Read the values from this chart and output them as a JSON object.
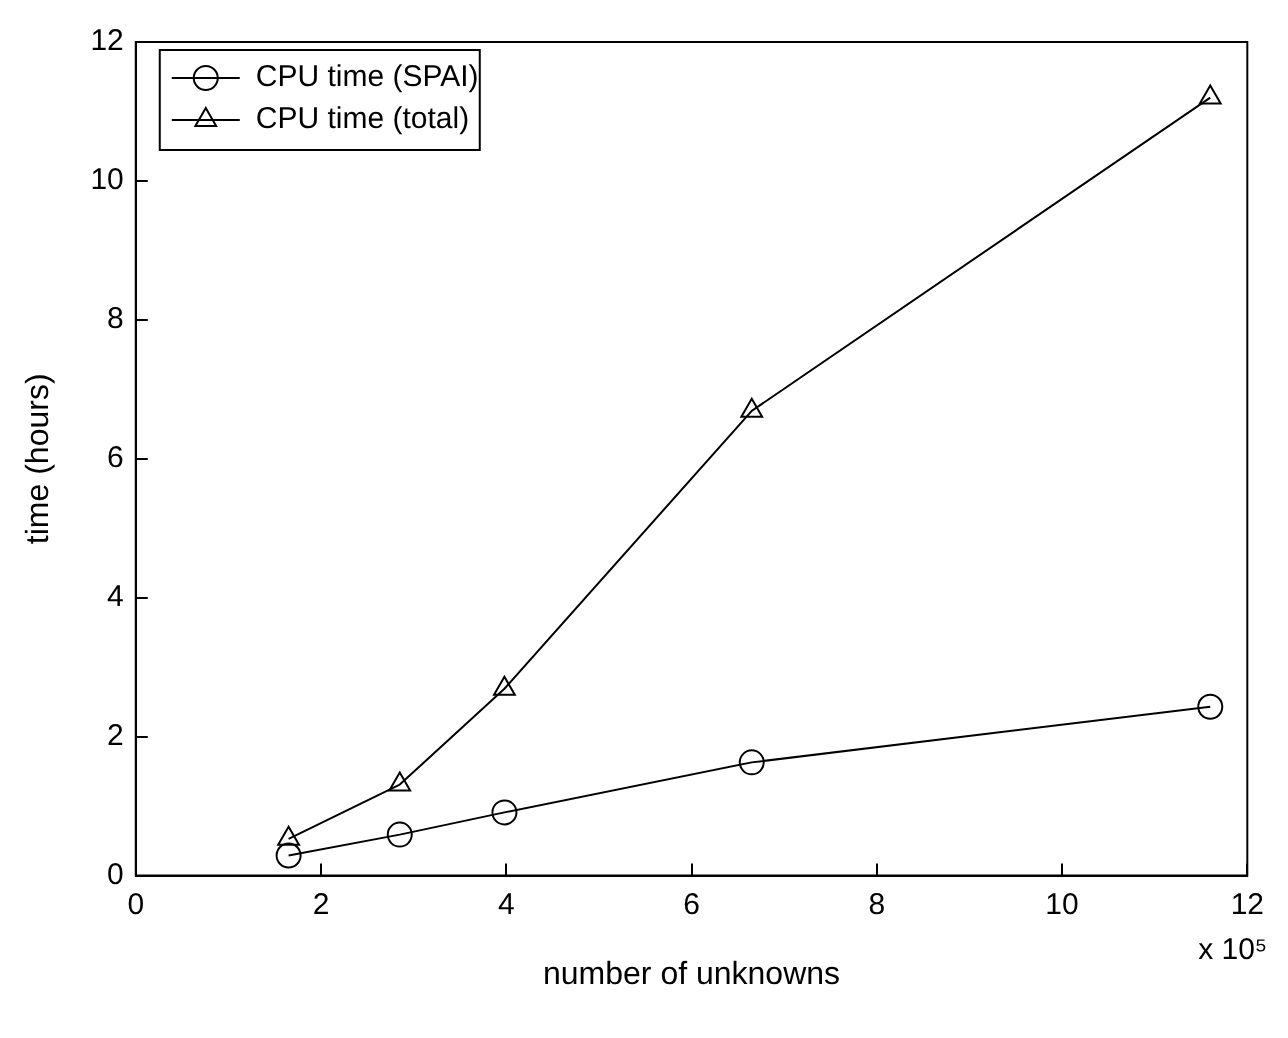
{
  "chart_data": {
    "type": "line",
    "xlabel": "number of unknowns",
    "ylabel": "time (hours)",
    "annotations": [
      "x 10⁵"
    ],
    "xlim": [
      0,
      12
    ],
    "xticks": [
      0,
      2,
      4,
      6,
      8,
      10,
      12
    ],
    "ylim": [
      0,
      12
    ],
    "yticks": [
      0,
      2,
      4,
      6,
      8,
      10,
      12
    ],
    "x": [
      1.65,
      2.85,
      3.98,
      6.65,
      11.6
    ],
    "series": [
      {
        "name": "CPU time (SPAI)",
        "color": "#000000",
        "marker": "circle",
        "values": [
          0.29,
          0.59,
          0.91,
          1.63,
          2.43
        ]
      },
      {
        "name": "CPU time (total)",
        "color": "#000000",
        "marker": "triangle",
        "values": [
          0.53,
          1.31,
          2.69,
          6.69,
          11.2
        ]
      }
    ],
    "legend": "top left",
    "grid": false,
    "line_style": "solid"
  }
}
